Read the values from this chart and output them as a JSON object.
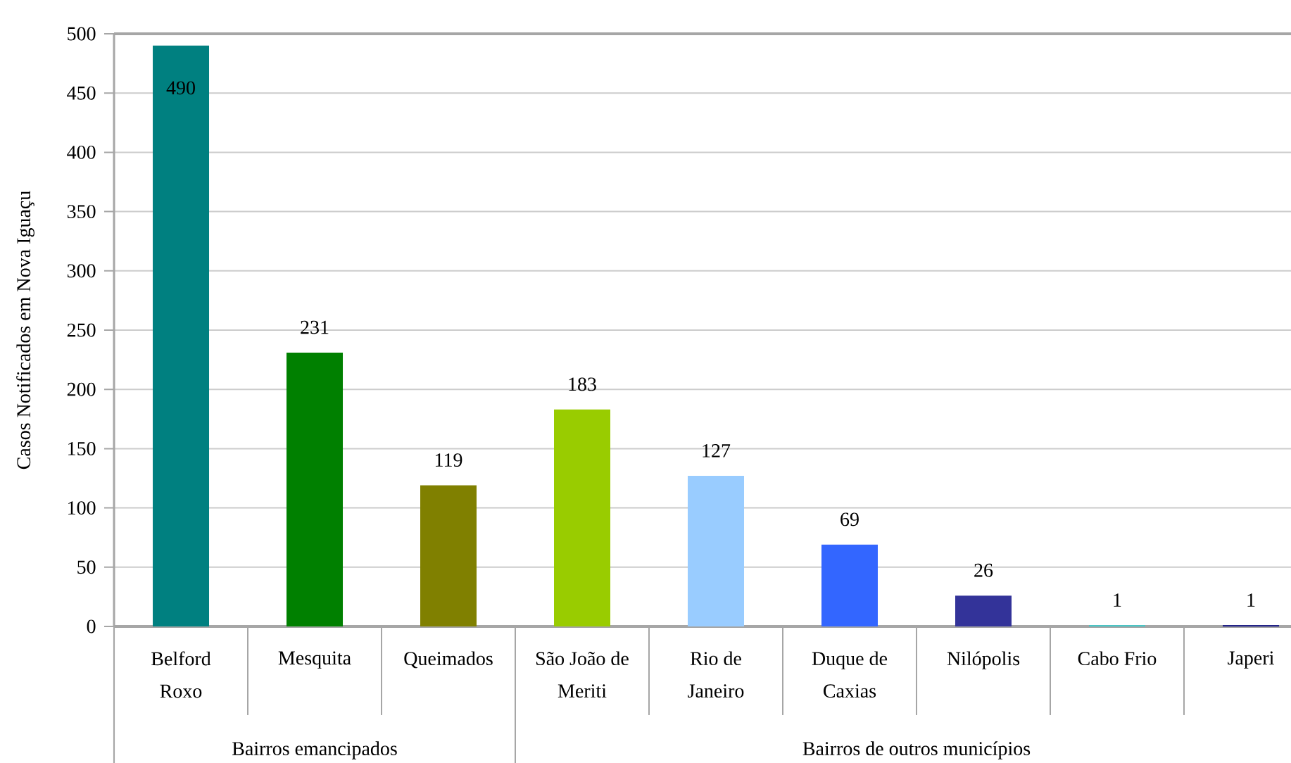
{
  "chart_data": {
    "type": "bar",
    "ylabel": "Casos Notificados em Nova Iguaçu",
    "categories": [
      "Belford Roxo",
      "Mesquita",
      "Queimados",
      "São João de Meriti",
      "Rio de Janeiro",
      "Duque de Caxias",
      "Nilópolis",
      "Cabo Frio",
      "Japeri"
    ],
    "values": [
      490,
      231,
      119,
      183,
      127,
      69,
      26,
      1,
      1
    ],
    "colors": [
      "#008080",
      "#008000",
      "#808000",
      "#99cc00",
      "#99ccff",
      "#3366ff",
      "#333399",
      "#33cccc",
      "#000080"
    ],
    "ylim": [
      0,
      500
    ],
    "yticks": [
      0,
      50,
      100,
      150,
      200,
      250,
      300,
      350,
      400,
      450,
      500
    ],
    "grid": "y",
    "data_labels": true,
    "annotations": [
      "Bairros emancipados",
      "Bairros de outros municípios"
    ]
  }
}
